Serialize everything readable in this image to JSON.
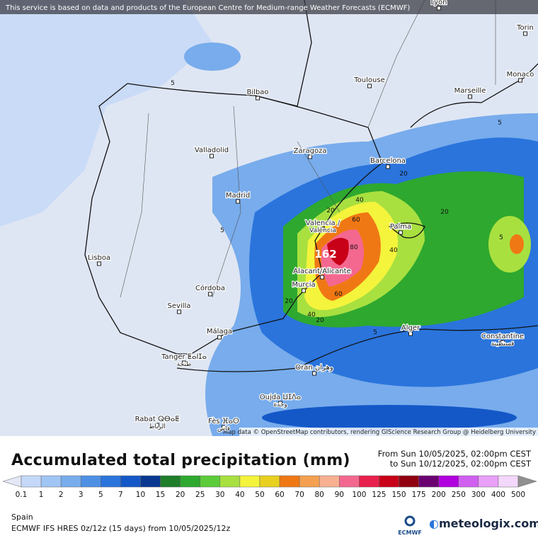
{
  "map": {
    "notice": "This service is based on data and products of the European Centre for Medium-range Weather Forecasts (ECMWF)",
    "attribution": "Map data © OpenStreetMap contributors, rendering GIScience Research Group @ Heidelberg University",
    "cities": [
      {
        "name": "Lyon"
      },
      {
        "name": "Torin"
      },
      {
        "name": "Monaco"
      },
      {
        "name": "Toulouse"
      },
      {
        "name": "Marseille"
      },
      {
        "name": "Bilbao"
      },
      {
        "name": "Valladolid"
      },
      {
        "name": "Zaragoza"
      },
      {
        "name": "Barcelona"
      },
      {
        "name": "Madrid"
      },
      {
        "name": "Valencia /",
        "alt": "València"
      },
      {
        "name": "Palma"
      },
      {
        "name": "Lisboa"
      },
      {
        "name": "Alacant/Alicante"
      },
      {
        "name": "Murcia"
      },
      {
        "name": "Córdoba"
      },
      {
        "name": "Sevilla"
      },
      {
        "name": "Alger"
      },
      {
        "name": "Málaga"
      },
      {
        "name": "Constantine",
        "alt": "قسنطينة"
      },
      {
        "name": "Tanger ⵟⴰⵏⵊⴰ",
        "alt": "طنجة"
      },
      {
        "name": "Oran وهران"
      },
      {
        "name": "Oujda ⵡⵊⴷⴰ",
        "alt": "وجدة"
      },
      {
        "name": "Rabat ⵕⴱⴰⵟ",
        "alt": "الرباط"
      },
      {
        "name": "Fès ⴼⴰⵙ",
        "alt": "فاس"
      }
    ],
    "contour_labels": [
      "162",
      "80",
      "60",
      "60",
      "40",
      "40",
      "40",
      "20",
      "20",
      "20",
      "20",
      "20",
      "5",
      "5",
      "5",
      "5",
      "5"
    ]
  },
  "legend": {
    "title": "Accumulated total precipitation (mm)",
    "from": "From Sun 10/05/2025, 02:00pm CEST",
    "to": "to Sun 10/12/2025, 02:00pm CEST",
    "labels": [
      0.1,
      1,
      2,
      3,
      5,
      7,
      10,
      15,
      20,
      25,
      30,
      40,
      50,
      60,
      70,
      80,
      90,
      100,
      125,
      150,
      175,
      200,
      250,
      300,
      400,
      500
    ],
    "colors": [
      "#e4e8f6",
      "#c4d8f8",
      "#a0c4f4",
      "#78acec",
      "#4e90e4",
      "#2a74dc",
      "#1458c8",
      "#0a3890",
      "#1e7e2a",
      "#2ea82e",
      "#5ccc3a",
      "#a8e040",
      "#f4f43c",
      "#e8d020",
      "#f07814",
      "#f4a050",
      "#f8b090",
      "#f46890",
      "#e8204c",
      "#c80018",
      "#900010",
      "#6a0070",
      "#b000e0",
      "#d060f0",
      "#e8a0f8",
      "#f4d8fc",
      "#d4d4d4",
      "#909090"
    ]
  },
  "footer": {
    "region": "Spain",
    "model": "ECMWF IFS HRES 0z/12z (15 days) from 10/05/2025/12z",
    "ecmwf": "ECMWF",
    "brand": "meteologix.com"
  }
}
